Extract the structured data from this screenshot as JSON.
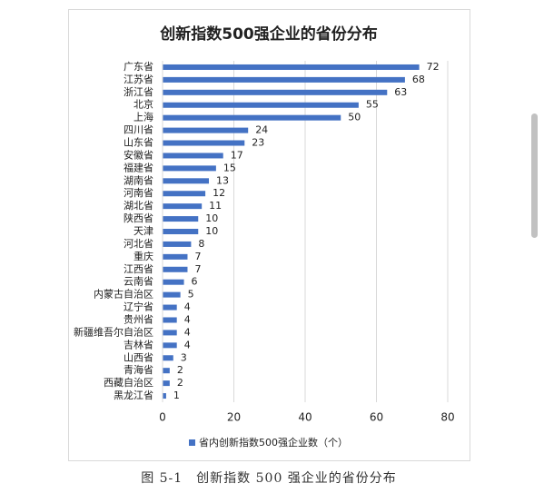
{
  "chart_data": {
    "type": "hbar",
    "title": "创新指数500强企业的省份分布",
    "categories": [
      "广东省",
      "江苏省",
      "浙江省",
      "北京",
      "上海",
      "四川省",
      "山东省",
      "安徽省",
      "福建省",
      "湖南省",
      "河南省",
      "湖北省",
      "陕西省",
      "天津",
      "河北省",
      "重庆",
      "江西省",
      "云南省",
      "内蒙古自治区",
      "辽宁省",
      "贵州省",
      "新疆维吾尔自治区",
      "吉林省",
      "山西省",
      "青海省",
      "西藏自治区",
      "黑龙江省"
    ],
    "series": [
      {
        "name": "省内创新指数500强企业数（个）",
        "color": "#4472c4",
        "values": [
          72,
          68,
          63,
          55,
          50,
          24,
          23,
          17,
          15,
          13,
          12,
          11,
          10,
          10,
          8,
          7,
          7,
          6,
          5,
          4,
          4,
          4,
          4,
          3,
          2,
          2,
          1
        ]
      }
    ],
    "xlim": [
      0,
      80
    ],
    "xticks": [
      0,
      20,
      40,
      60,
      80
    ],
    "grid": true,
    "legend": "bottom"
  },
  "caption": "图 5-1　创新指数 500 强企业的省份分布"
}
